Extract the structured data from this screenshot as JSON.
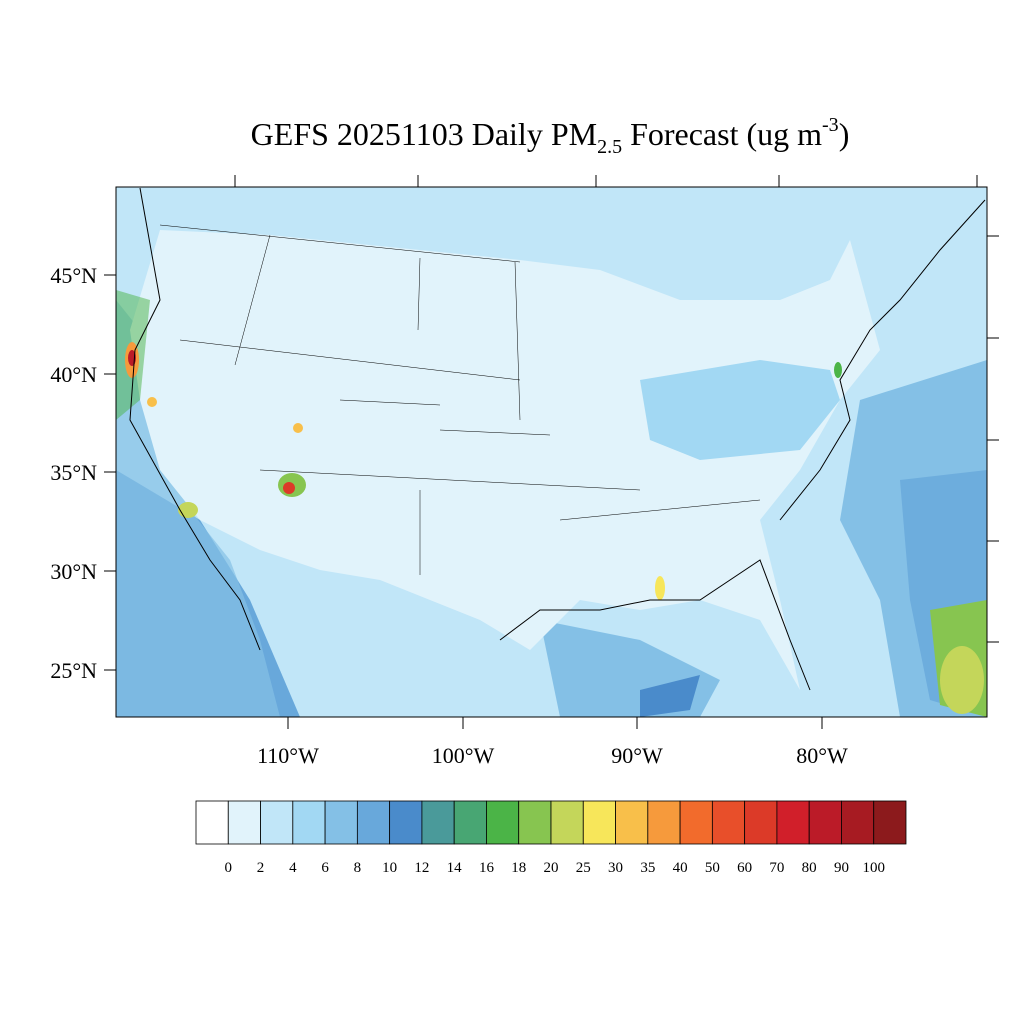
{
  "title": {
    "text": "GEFS 20251103 Daily PM",
    "sub": "2.5",
    "mid": " Forecast (ug m",
    "sup": "-3",
    "end": ")"
  },
  "lat_labels": [
    "45°N",
    "40°N",
    "35°N",
    "30°N",
    "25°N"
  ],
  "lon_labels": [
    "110°W",
    "100°W",
    "90°W",
    "80°W"
  ],
  "colorbar": {
    "labels": [
      "0",
      "2",
      "4",
      "6",
      "8",
      "10",
      "12",
      "14",
      "16",
      "18",
      "20",
      "25",
      "30",
      "35",
      "40",
      "50",
      "60",
      "70",
      "80",
      "90",
      "100"
    ],
    "colors": [
      "#ffffff",
      "#e1f3fb",
      "#c1e6f8",
      "#a2d8f3",
      "#84c0e6",
      "#68a8db",
      "#4a8bcb",
      "#4a9a9a",
      "#48a673",
      "#4bb447",
      "#87c550",
      "#c4d65a",
      "#f7e65a",
      "#f8bf4a",
      "#f69a3c",
      "#f26b2c",
      "#e84f2a",
      "#dc3a28",
      "#d11f2a",
      "#bb1b28",
      "#a71b22",
      "#8c1a1c"
    ]
  }
}
